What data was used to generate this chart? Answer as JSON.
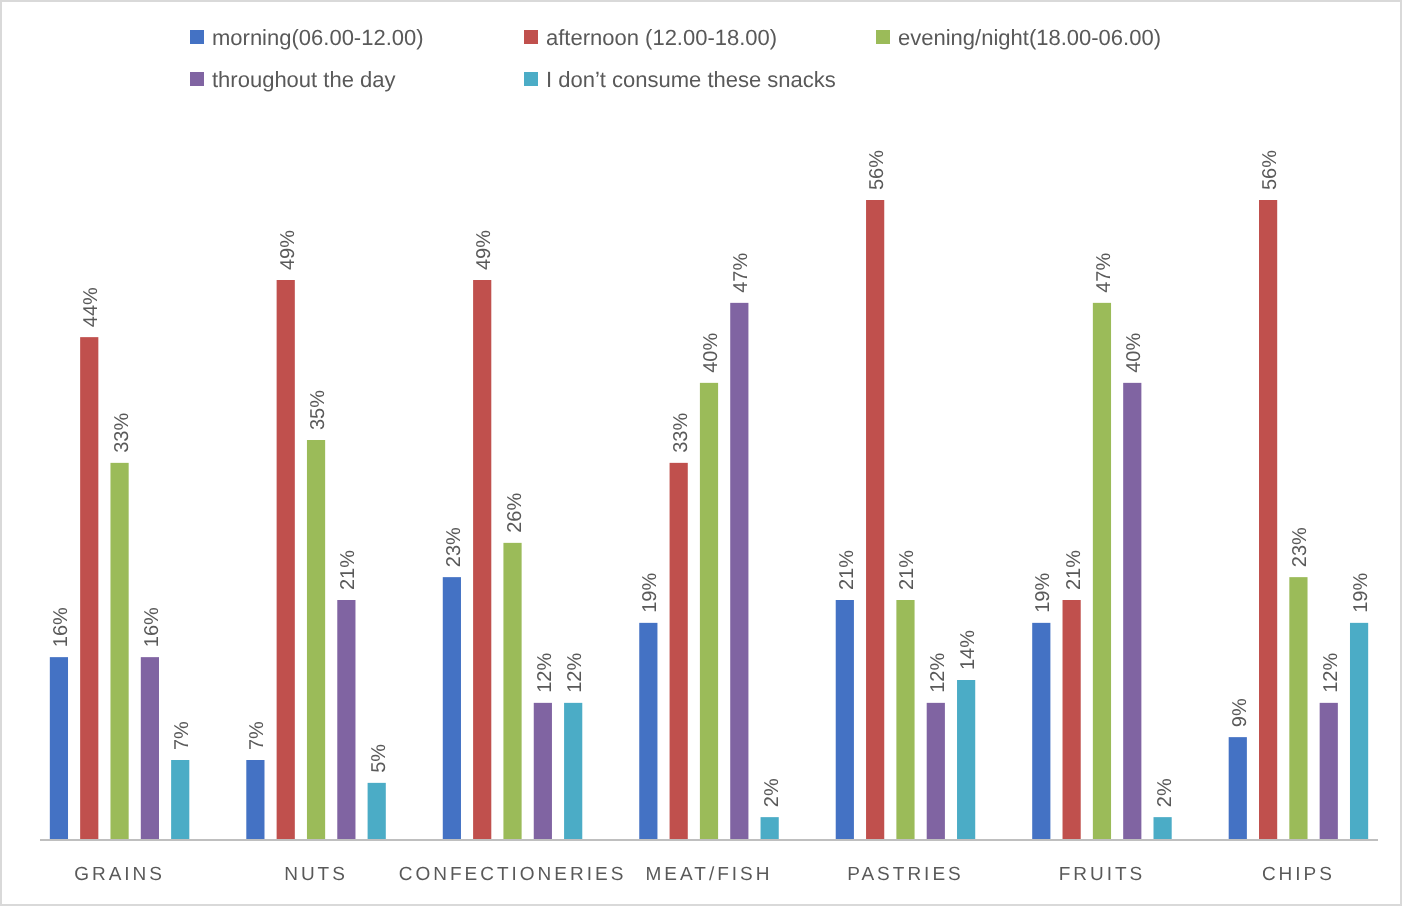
{
  "chart_data": {
    "type": "bar",
    "categories": [
      "GRAINS",
      "NUTS",
      "CONFECTIONERIES",
      "MEAT/FISH",
      "PASTRIES",
      "FRUITS",
      "CHIPS"
    ],
    "tick_labels": "x",
    "legend": "top",
    "series": [
      {
        "name": "morning(06.00-12.00)",
        "color": "#4472c4",
        "values": [
          16,
          7,
          23,
          19,
          21,
          19,
          9
        ],
        "value_labels": [
          "16%",
          "7%",
          "23%",
          "19%",
          "21%",
          "19%",
          "9%"
        ]
      },
      {
        "name": "afternoon (12.00-18.00)",
        "color": "#c0504d",
        "values": [
          44,
          49,
          49,
          33,
          56,
          21,
          56
        ],
        "value_labels": [
          "44%",
          "49%",
          "49%",
          "33%",
          "56%",
          "21%",
          "56%"
        ]
      },
      {
        "name": "evening/night(18.00-06.00)",
        "color": "#9bbb59",
        "values": [
          33,
          35,
          26,
          40,
          21,
          47,
          23
        ],
        "value_labels": [
          "33%",
          "35%",
          "26%",
          "40%",
          "21%",
          "47%",
          "23%"
        ]
      },
      {
        "name": "throughout the day",
        "color": "#8064a2",
        "values": [
          16,
          21,
          12,
          47,
          12,
          40,
          12
        ],
        "value_labels": [
          "16%",
          "21%",
          "12%",
          "47%",
          "12%",
          "40%",
          "12%"
        ]
      },
      {
        "name": "I don’t consume these snacks",
        "color": "#4bacc6",
        "values": [
          7,
          5,
          12,
          2,
          14,
          2,
          19
        ],
        "value_labels": [
          "7%",
          "5%",
          "12%",
          "2%",
          "14%",
          "2%",
          "19%"
        ]
      }
    ]
  }
}
